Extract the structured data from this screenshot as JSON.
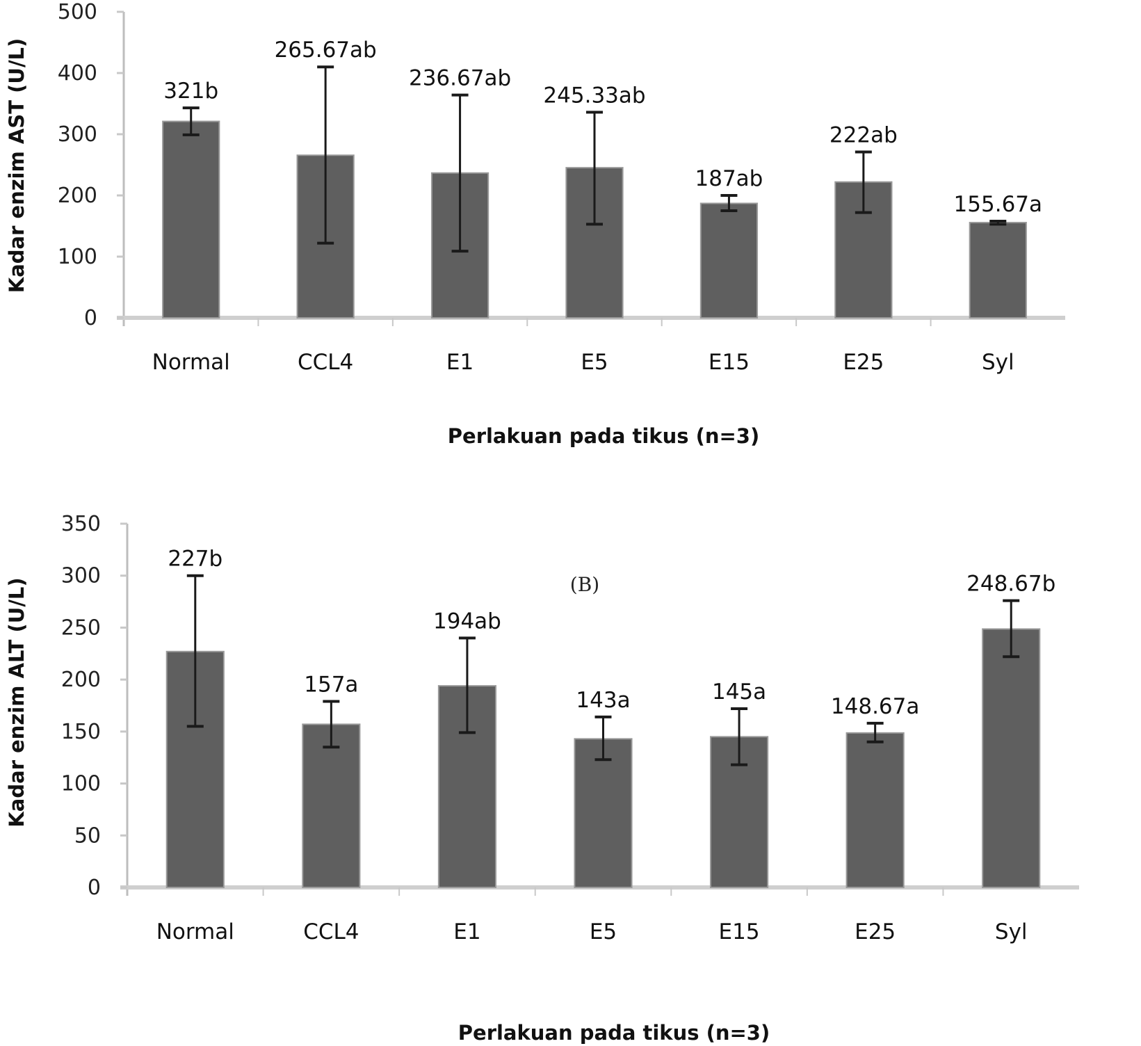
{
  "chart_data": [
    {
      "type": "bar",
      "title": "",
      "xlabel": "Perlakuan pada tikus (n=3)",
      "ylabel": "Kadar enzim AST (U/L)",
      "ylim": [
        0,
        500
      ],
      "yticks": [
        0,
        100,
        200,
        300,
        400,
        500
      ],
      "ytick_labels": [
        "0",
        "100",
        "200",
        "300",
        "400",
        "500"
      ],
      "grid": false,
      "categories": [
        "Normal",
        "CCL4",
        "E1",
        "E5",
        "E15",
        "E25",
        "Syl"
      ],
      "values": [
        321,
        265.67,
        236.67,
        245.33,
        187,
        222,
        155.67
      ],
      "error_upper": [
        343,
        410,
        364,
        336,
        200,
        271,
        158
      ],
      "error_lower": [
        299,
        122,
        109,
        153,
        175,
        172,
        153
      ],
      "data_labels": [
        "321b",
        "265.67ab",
        "236.67ab",
        "245.33ab",
        "187ab",
        "222ab",
        "155.67a"
      ],
      "bar_color": "#5f5f5f",
      "annotation": ""
    },
    {
      "type": "bar",
      "title": "",
      "xlabel": "Perlakuan pada tikus (n=3)",
      "ylabel": "Kadar enzim ALT (U/L)",
      "ylim": [
        0,
        350
      ],
      "yticks": [
        0,
        50,
        100,
        150,
        200,
        250,
        300,
        350
      ],
      "ytick_labels": [
        "0",
        "50",
        "100",
        "150",
        "200",
        "250",
        "300",
        "350"
      ],
      "grid": false,
      "categories": [
        "Normal",
        "CCL4",
        "E1",
        "E5",
        "E15",
        "E25",
        "Syl"
      ],
      "values": [
        227,
        157,
        194,
        143,
        145,
        148.67,
        248.67
      ],
      "error_upper": [
        300,
        179,
        240,
        164,
        172,
        158,
        276
      ],
      "error_lower": [
        155,
        135,
        149,
        123,
        118,
        140,
        222
      ],
      "data_labels": [
        "227b",
        "157a",
        "194ab",
        "143a",
        "145a",
        "148.67a",
        "248.67b"
      ],
      "bar_color": "#5f5f5f",
      "annotation": "(B)"
    }
  ]
}
